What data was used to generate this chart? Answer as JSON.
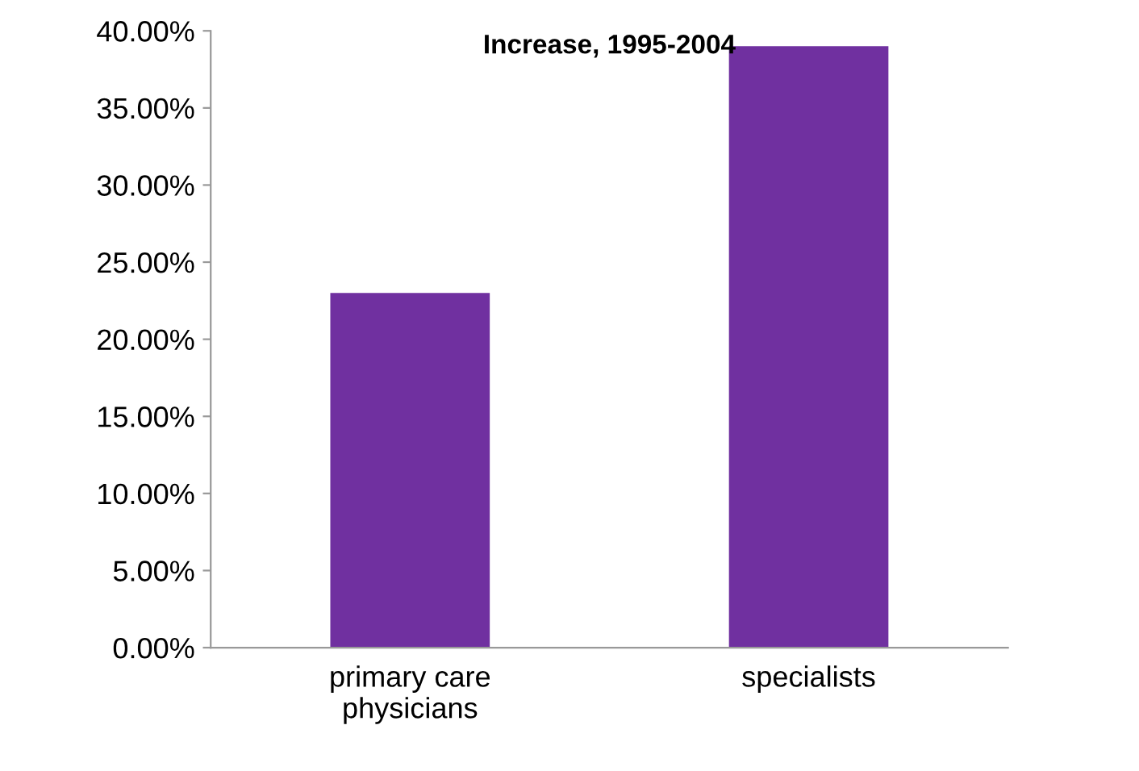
{
  "chart_data": {
    "type": "bar",
    "title": "Increase, 1995-2004",
    "categories": [
      "primary care\nphysicians",
      "specialists"
    ],
    "values": [
      23,
      39
    ],
    "color": "#7030a0",
    "ylim": [
      0,
      40
    ],
    "yticks": [
      {
        "value": 0,
        "label": "0.00%"
      },
      {
        "value": 5,
        "label": "5.00%"
      },
      {
        "value": 10,
        "label": "10.00%"
      },
      {
        "value": 15,
        "label": "15.00%"
      },
      {
        "value": 20,
        "label": "20.00%"
      },
      {
        "value": 25,
        "label": "25.00%"
      },
      {
        "value": 30,
        "label": "30.00%"
      },
      {
        "value": 35,
        "label": "35.00%"
      },
      {
        "value": 40,
        "label": "40.00%"
      }
    ],
    "grid": false,
    "legend": false
  }
}
